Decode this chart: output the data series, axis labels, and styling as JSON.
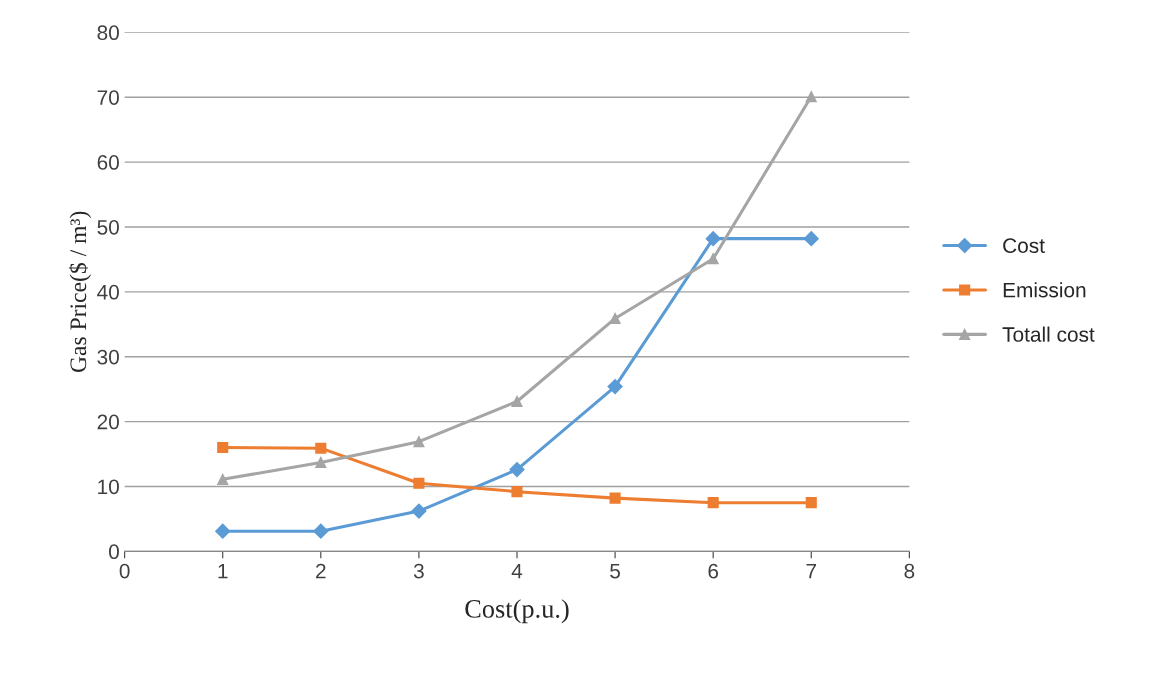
{
  "chart_data": {
    "type": "line",
    "xlabel": "Cost(p.u.)",
    "ylabel": "Gas Price($ / m³)",
    "x": [
      1,
      2,
      3,
      4,
      5,
      6,
      7
    ],
    "series": [
      {
        "name": "Cost",
        "color": "#5b9bd5",
        "marker": "diamond",
        "values": [
          3.1,
          3.1,
          6.2,
          12.6,
          25.4,
          48.2,
          48.2
        ]
      },
      {
        "name": "Emission",
        "color": "#ed7d31",
        "marker": "square",
        "values": [
          16.0,
          15.9,
          10.5,
          9.2,
          8.2,
          7.5,
          7.5
        ]
      },
      {
        "name": "Totall cost",
        "color": "#a5a5a5",
        "marker": "triangle",
        "values": [
          11.1,
          13.7,
          16.9,
          23.1,
          35.9,
          45.1,
          70.1
        ]
      }
    ],
    "xlim": [
      0,
      8
    ],
    "xticks": [
      0,
      1,
      2,
      3,
      4,
      5,
      6,
      7,
      8
    ],
    "ylim": [
      0,
      80
    ],
    "yticks": [
      0,
      10,
      20,
      30,
      40,
      50,
      60,
      70,
      80
    ],
    "grid": "y",
    "legend": "right",
    "line_style": "solid"
  }
}
